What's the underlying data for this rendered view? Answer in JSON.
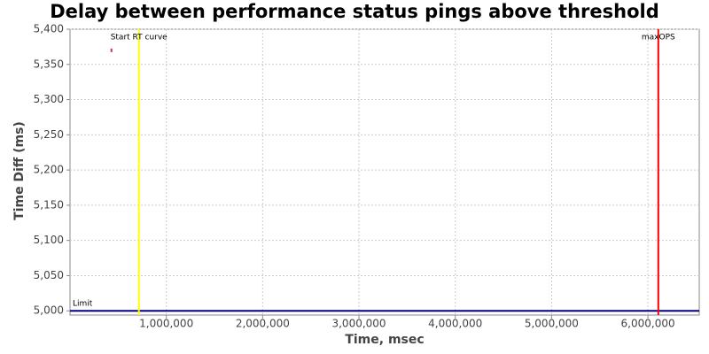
{
  "chart_data": {
    "type": "scatter",
    "title": "Delay between performance status pings above threshold",
    "x_label": "Time, msec",
    "y_label": "Time Diff (ms)",
    "x": [
      430000
    ],
    "values": [
      5370
    ],
    "color": "#cc3355",
    "xlim": [
      0,
      6533000
    ],
    "ylim": [
      4994,
      5400
    ],
    "xticks": [
      {
        "value": 1000000,
        "label": "1,000,000"
      },
      {
        "value": 2000000,
        "label": "2,000,000"
      },
      {
        "value": 3000000,
        "label": "3,000,000"
      },
      {
        "value": 4000000,
        "label": "4,000,000"
      },
      {
        "value": 5000000,
        "label": "5,000,000"
      },
      {
        "value": 6000000,
        "label": "6,000,000"
      }
    ],
    "yticks": [
      {
        "value": 5000,
        "label": "5,000"
      },
      {
        "value": 5050,
        "label": "5,050"
      },
      {
        "value": 5100,
        "label": "5,100"
      },
      {
        "value": 5150,
        "label": "5,150"
      },
      {
        "value": 5200,
        "label": "5,200"
      },
      {
        "value": 5250,
        "label": "5,250"
      },
      {
        "value": 5300,
        "label": "5,300"
      },
      {
        "value": 5350,
        "label": "5,350"
      },
      {
        "value": 5400,
        "label": "5,400"
      }
    ],
    "grid": true,
    "x_markers": [
      {
        "label": "Start RT curve",
        "x": 715000,
        "color": "#ffff00"
      },
      {
        "label": "maxOPS",
        "x": 6108000,
        "color": "#ff0000"
      }
    ],
    "y_markers": [
      {
        "label": "Limit",
        "y": 5000,
        "color": "#000080"
      }
    ]
  }
}
